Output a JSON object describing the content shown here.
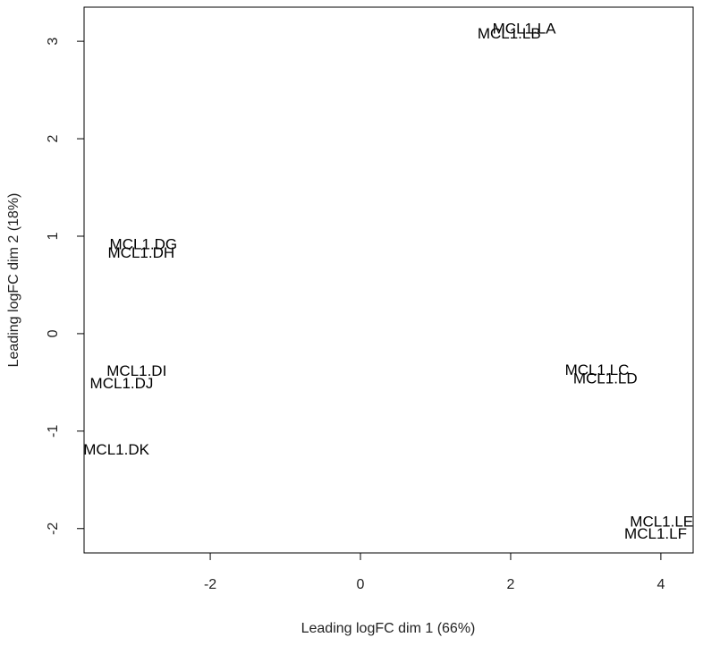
{
  "chart_data": {
    "type": "scatter",
    "xlabel": "Leading logFC dim 1 (66%)",
    "ylabel": "Leading logFC dim 2 (18%)",
    "labels": [
      "MCL1.LA",
      "MCL1.LB",
      "MCL1.DG",
      "MCL1.DH",
      "MCL1.DI",
      "MCL1.DJ",
      "MCL1.DK",
      "MCL1.LC",
      "MCL1.LD",
      "MCL1.LE",
      "MCL1.LF"
    ],
    "x": [
      2.18,
      1.98,
      -2.89,
      -2.92,
      -2.98,
      -3.18,
      -3.25,
      3.15,
      3.26,
      4.01,
      3.93
    ],
    "values": [
      3.12,
      3.07,
      0.91,
      0.82,
      -0.39,
      -0.52,
      -1.2,
      -0.38,
      -0.47,
      -1.94,
      -2.06
    ],
    "xlim": [
      -3.68,
      4.43
    ],
    "ylim": [
      -2.25,
      3.35
    ],
    "xticks": [
      -2,
      0,
      2,
      4
    ],
    "yticks": [
      -2,
      -1,
      0,
      1,
      2,
      3
    ]
  }
}
